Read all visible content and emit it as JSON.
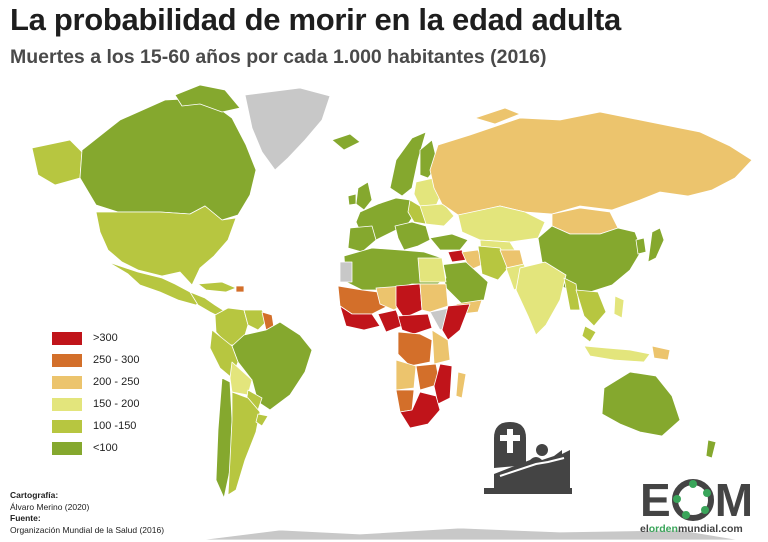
{
  "title": "La probabilidad de morir en la edad adulta",
  "subtitle": "Muertes a los 15-60 años por cada 1.000 habitantes (2016)",
  "colors": {
    "gt300": "#c0141a",
    "r250_300": "#d36f2a",
    "r200_250": "#ecc46d",
    "r150_200": "#e3e57c",
    "r100_150": "#b7c640",
    "lt100": "#85a82e",
    "nodata": "#c8c8c8",
    "ocean": "#ffffff"
  },
  "legend": [
    {
      "label": ">300",
      "color": "#c0141a"
    },
    {
      "label": "250 - 300",
      "color": "#d36f2a"
    },
    {
      "label": "200 - 250",
      "color": "#ecc46d"
    },
    {
      "label": "150 - 200",
      "color": "#e3e57c"
    },
    {
      "label": "100 -150",
      "color": "#b7c640"
    },
    {
      "label": "<100",
      "color": "#85a82e"
    }
  ],
  "credits": {
    "cartografia_label": "Cartografía:",
    "cartografia": "Álvaro Merino (2020)",
    "fuente_label": "Fuente:",
    "fuente": "Organización Mundial de la Salud (2016)"
  },
  "logo": {
    "letter_e": "E",
    "letter_m": "M",
    "url_pre": "el",
    "url_hl": "orden",
    "url_post": "mundial.com"
  },
  "icon": "grave-person-icon"
}
